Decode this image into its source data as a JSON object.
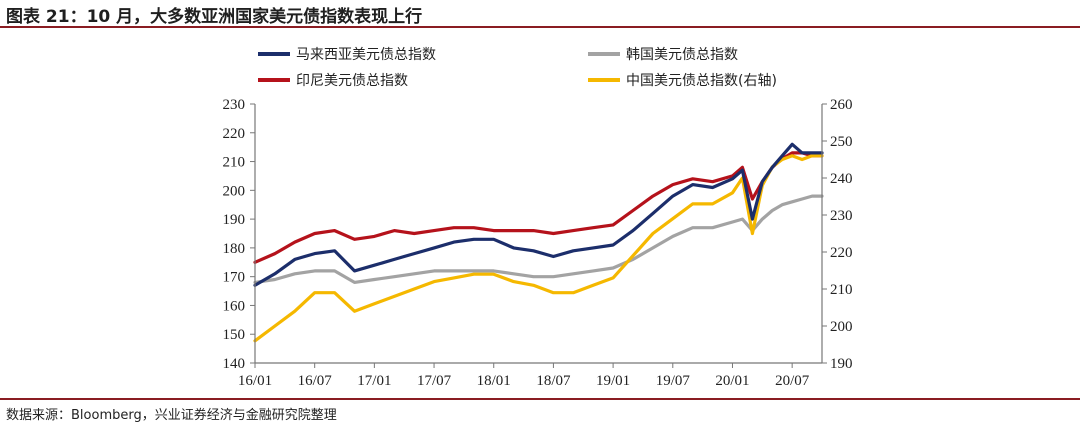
{
  "header": {
    "title": "图表 21：10 月，大多数亚洲国家美元债指数表现上行"
  },
  "footer": {
    "source": "数据来源：Bloomberg，兴业证券经济与金融研究院整理"
  },
  "chart_data": {
    "type": "line",
    "title": "图表 21：10 月，大多数亚洲国家美元债指数表现上行",
    "xlabel": "",
    "ylabel": "",
    "x_ticks": [
      "16/01",
      "16/07",
      "17/01",
      "17/07",
      "18/01",
      "18/07",
      "19/01",
      "19/07",
      "20/01",
      "20/07"
    ],
    "x_range": [
      "2016-01",
      "2020-10"
    ],
    "ylim_left": [
      140,
      230
    ],
    "ylim_right": [
      190,
      260
    ],
    "y_ticks_left": [
      140,
      150,
      160,
      170,
      180,
      190,
      200,
      210,
      220,
      230
    ],
    "y_ticks_right": [
      190,
      200,
      210,
      220,
      230,
      240,
      250,
      260
    ],
    "grid": false,
    "legend_position": "top",
    "series": [
      {
        "name": "马来西亚美元债总指数",
        "axis": "left",
        "color": "#1c2e6b",
        "x": [
          "2016-01",
          "2016-03",
          "2016-05",
          "2016-07",
          "2016-09",
          "2016-11",
          "2017-01",
          "2017-03",
          "2017-05",
          "2017-07",
          "2017-09",
          "2017-11",
          "2018-01",
          "2018-03",
          "2018-05",
          "2018-07",
          "2018-09",
          "2018-11",
          "2019-01",
          "2019-03",
          "2019-05",
          "2019-07",
          "2019-09",
          "2019-11",
          "2020-01",
          "2020-02",
          "2020-03",
          "2020-04",
          "2020-05",
          "2020-06",
          "2020-07",
          "2020-08",
          "2020-09",
          "2020-10"
        ],
        "values": [
          167,
          171,
          176,
          178,
          179,
          172,
          174,
          176,
          178,
          180,
          182,
          183,
          183,
          180,
          179,
          177,
          179,
          180,
          181,
          186,
          192,
          198,
          202,
          201,
          204,
          207,
          190,
          203,
          208,
          212,
          216,
          213,
          213,
          213
        ]
      },
      {
        "name": "韩国美元债总指数",
        "axis": "left",
        "color": "#a3a3a3",
        "x": [
          "2016-01",
          "2016-03",
          "2016-05",
          "2016-07",
          "2016-09",
          "2016-11",
          "2017-01",
          "2017-03",
          "2017-05",
          "2017-07",
          "2017-09",
          "2017-11",
          "2018-01",
          "2018-03",
          "2018-05",
          "2018-07",
          "2018-09",
          "2018-11",
          "2019-01",
          "2019-03",
          "2019-05",
          "2019-07",
          "2019-09",
          "2019-11",
          "2020-01",
          "2020-02",
          "2020-03",
          "2020-04",
          "2020-05",
          "2020-06",
          "2020-07",
          "2020-08",
          "2020-09",
          "2020-10"
        ],
        "values": [
          168,
          169,
          171,
          172,
          172,
          168,
          169,
          170,
          171,
          172,
          172,
          172,
          172,
          171,
          170,
          170,
          171,
          172,
          173,
          176,
          180,
          184,
          187,
          187,
          189,
          190,
          186,
          190,
          193,
          195,
          196,
          197,
          198,
          198
        ]
      },
      {
        "name": "印尼美元债总指数",
        "axis": "left",
        "color": "#b5121b",
        "x": [
          "2016-01",
          "2016-03",
          "2016-05",
          "2016-07",
          "2016-09",
          "2016-11",
          "2017-01",
          "2017-03",
          "2017-05",
          "2017-07",
          "2017-09",
          "2017-11",
          "2018-01",
          "2018-03",
          "2018-05",
          "2018-07",
          "2018-09",
          "2018-11",
          "2019-01",
          "2019-03",
          "2019-05",
          "2019-07",
          "2019-09",
          "2019-11",
          "2020-01",
          "2020-02",
          "2020-03",
          "2020-04",
          "2020-05",
          "2020-06",
          "2020-07",
          "2020-08",
          "2020-09",
          "2020-10"
        ],
        "values": [
          175,
          178,
          182,
          185,
          186,
          183,
          184,
          186,
          185,
          186,
          187,
          187,
          186,
          186,
          186,
          185,
          186,
          187,
          188,
          193,
          198,
          202,
          204,
          203,
          205,
          208,
          197,
          203,
          208,
          211,
          213,
          213,
          212,
          212
        ]
      },
      {
        "name": "中国美元债总指数(右轴)",
        "axis": "right",
        "color": "#f5b800",
        "x": [
          "2016-01",
          "2016-03",
          "2016-05",
          "2016-07",
          "2016-09",
          "2016-11",
          "2017-01",
          "2017-03",
          "2017-05",
          "2017-07",
          "2017-09",
          "2017-11",
          "2018-01",
          "2018-03",
          "2018-05",
          "2018-07",
          "2018-09",
          "2018-11",
          "2019-01",
          "2019-03",
          "2019-05",
          "2019-07",
          "2019-09",
          "2019-11",
          "2020-01",
          "2020-02",
          "2020-03",
          "2020-04",
          "2020-05",
          "2020-06",
          "2020-07",
          "2020-08",
          "2020-09",
          "2020-10"
        ],
        "values": [
          196,
          200,
          204,
          209,
          209,
          204,
          206,
          208,
          210,
          212,
          213,
          214,
          214,
          212,
          211,
          209,
          209,
          211,
          213,
          219,
          225,
          229,
          233,
          233,
          236,
          240,
          225,
          238,
          243,
          245,
          246,
          245,
          246,
          246
        ]
      }
    ]
  }
}
